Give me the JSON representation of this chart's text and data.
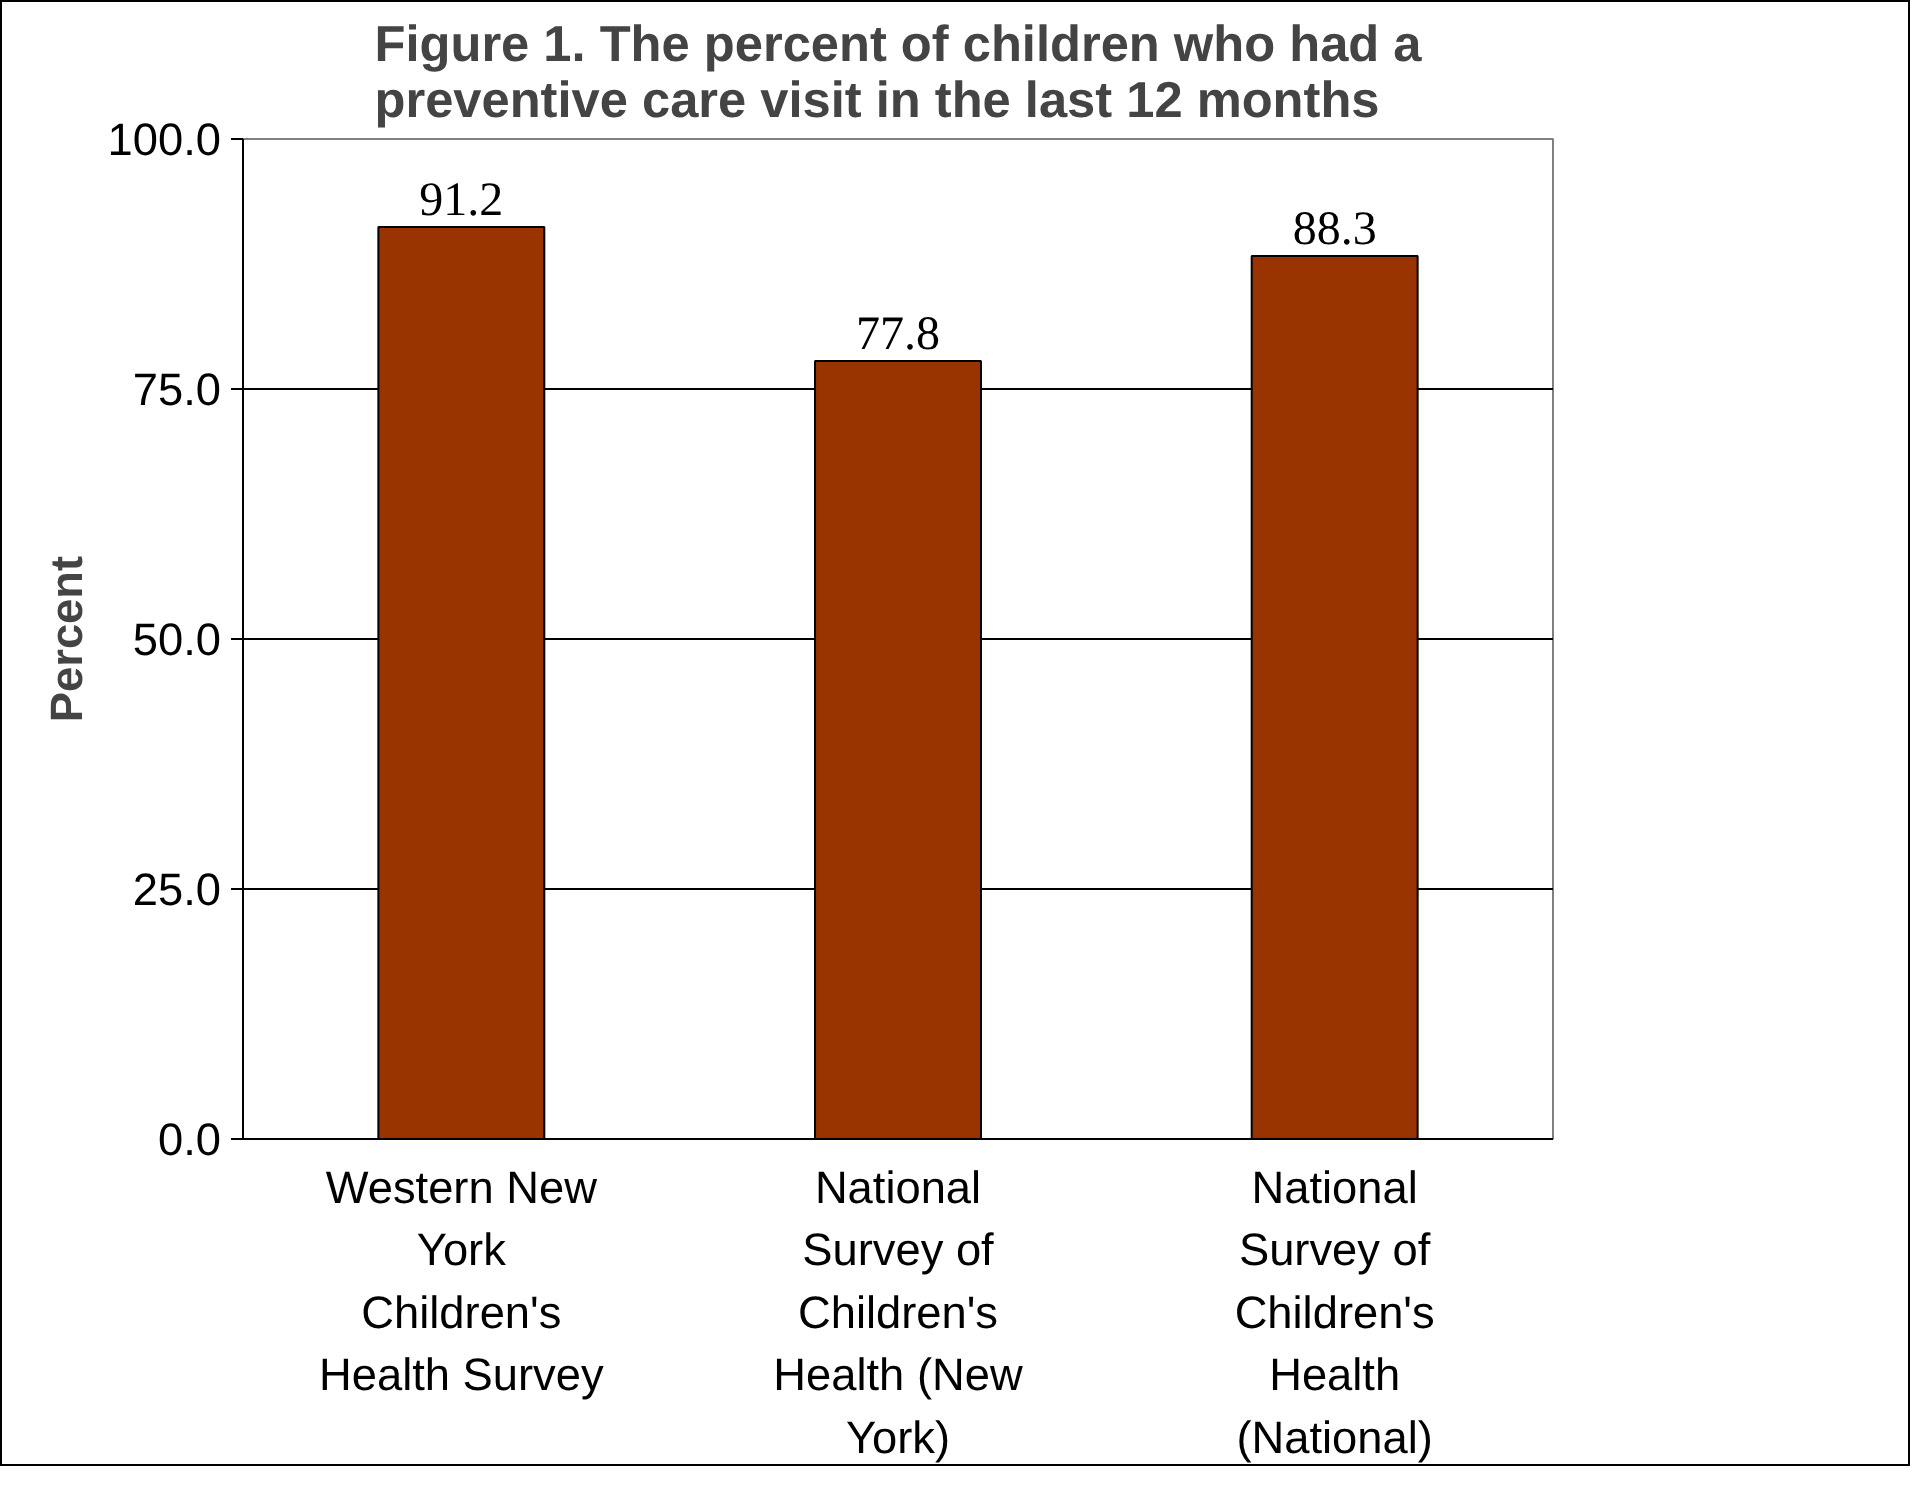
{
  "chart_data": {
    "type": "bar",
    "title": "Figure 1. The percent of children who had a preventive care visit in the last 12 months",
    "ylabel": "Percent",
    "categories": [
      "Western New York Children's Health Survey",
      "National Survey of Children's Health (New York)",
      "National Survey of Children's Health (National)"
    ],
    "values": [
      91.2,
      77.8,
      88.3
    ],
    "color": "#993300",
    "ylim": [
      0,
      100
    ],
    "yticks": [
      {
        "value": 0,
        "label": "0.0"
      },
      {
        "value": 25,
        "label": "25.0"
      },
      {
        "value": 50,
        "label": "50.0"
      },
      {
        "value": 75,
        "label": "75.0"
      },
      {
        "value": 100,
        "label": "100.0"
      }
    ],
    "grid": "y",
    "data_labels": true
  }
}
